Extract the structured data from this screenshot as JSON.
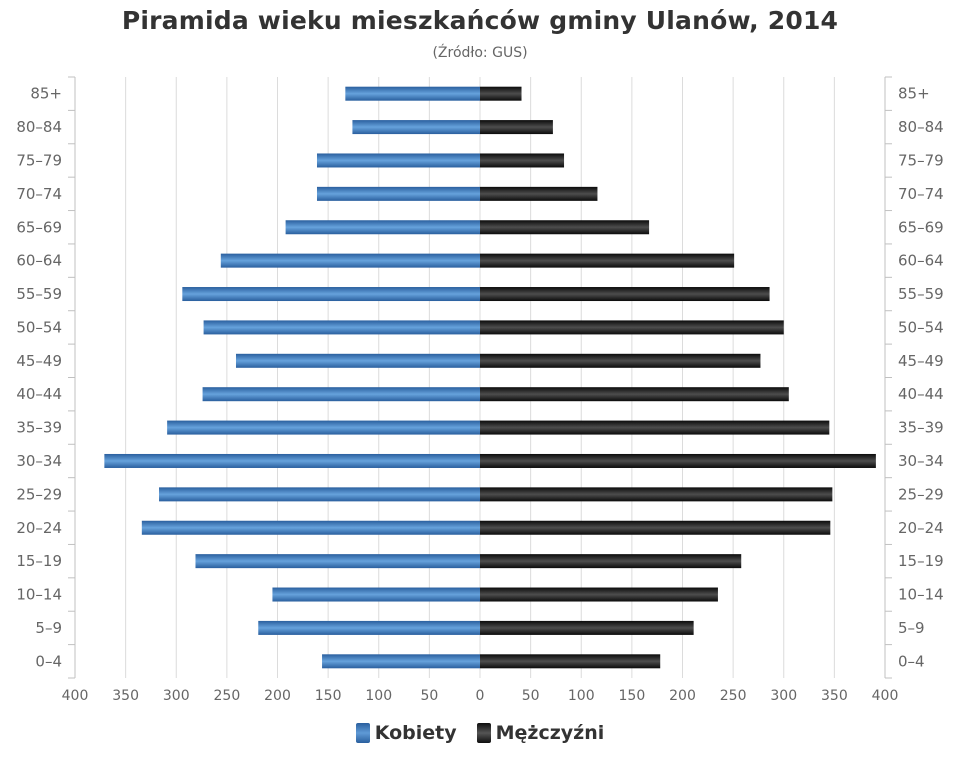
{
  "chart_data": {
    "type": "bar",
    "orientation": "horizontal-pyramid",
    "title": "Piramida wieku mieszkańców gminy Ulanów, 2014",
    "subtitle": "(Źródło: GUS)",
    "categories": [
      "85+",
      "80–84",
      "75–79",
      "70–74",
      "65–69",
      "60–64",
      "55–59",
      "50–54",
      "45–49",
      "40–44",
      "35–39",
      "30–34",
      "25–29",
      "20–24",
      "15–19",
      "10–14",
      "5–9",
      "0–4"
    ],
    "series": [
      {
        "name": "Kobiety",
        "side": "left",
        "color": "#4a86c5",
        "values": [
          133,
          126,
          161,
          161,
          192,
          256,
          294,
          273,
          241,
          274,
          309,
          371,
          317,
          334,
          281,
          205,
          219,
          156
        ]
      },
      {
        "name": "Mężczyźni",
        "side": "right",
        "color": "#1a1a1a",
        "values": [
          41,
          72,
          83,
          116,
          167,
          251,
          286,
          300,
          277,
          305,
          345,
          391,
          348,
          346,
          258,
          235,
          211,
          178
        ]
      }
    ],
    "xlim": [
      0,
      400
    ],
    "xticks": [
      400,
      350,
      300,
      250,
      200,
      150,
      100,
      50,
      0,
      50,
      100,
      150,
      200,
      250,
      300,
      350,
      400
    ],
    "grid": true,
    "legend_position": "bottom-center"
  }
}
